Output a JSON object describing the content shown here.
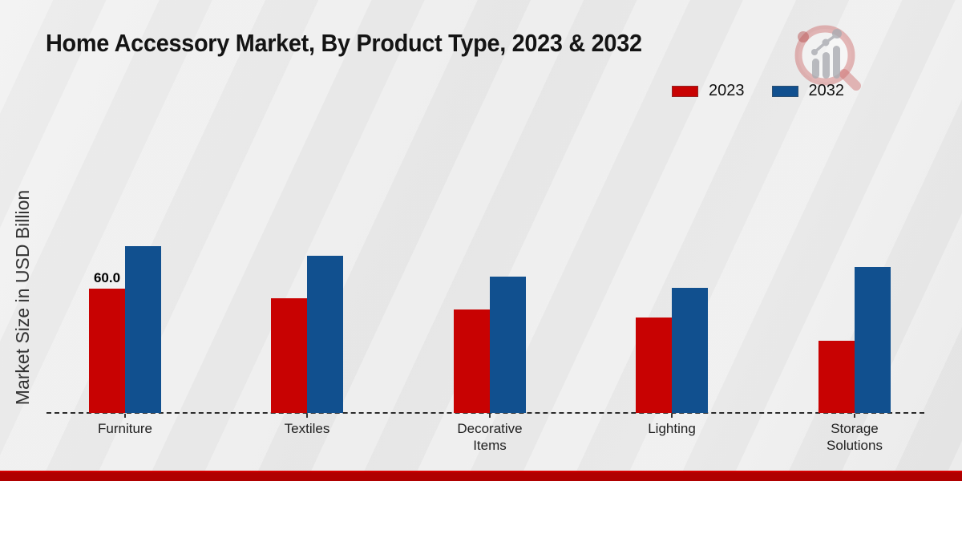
{
  "title": "Home Accessory Market, By Product Type, 2023 & 2032",
  "ylabel": "Market Size in USD Billion",
  "icons": {
    "brand_logo": "magnifier-bar-chart-logo-icon"
  },
  "footer": {
    "band_color": "#b00000"
  },
  "chart_data": {
    "type": "bar",
    "title": "Home Accessory Market, By Product Type, 2023 & 2032",
    "xlabel": "",
    "ylabel": "Market Size in USD Billion",
    "categories": [
      "Furniture",
      "Textiles",
      "Decorative Items",
      "Lighting",
      "Storage Solutions"
    ],
    "series": [
      {
        "name": "2023",
        "color": "#c80202",
        "values": [
          60.0,
          55.5,
          50.0,
          46.0,
          35.0
        ]
      },
      {
        "name": "2032",
        "color": "#11508f",
        "values": [
          80.5,
          76.0,
          66.0,
          60.5,
          70.5
        ]
      }
    ],
    "annotations": [
      {
        "category": "Furniture",
        "series": "2023",
        "text": "60.0"
      }
    ],
    "grid": false,
    "y_axis_ticks_visible": false,
    "baseline_style": "dashed",
    "legend_position": "top-right"
  }
}
